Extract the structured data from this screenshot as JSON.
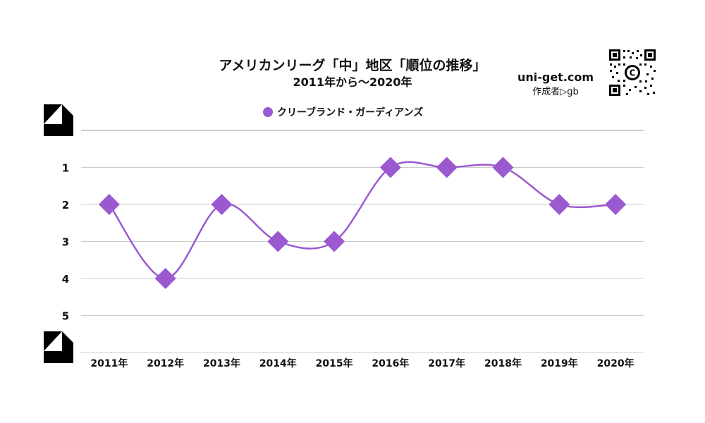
{
  "header": {
    "title": "アメリカンリーグ「中」地区「順位の推移」",
    "subtitle": "2011年から～2020年"
  },
  "brand": {
    "site": "uni-get.com",
    "author": "作成者▷gb",
    "qr_icon": "qr-code-icon"
  },
  "colors": {
    "series": "#9b59d0",
    "grid": "#cccccc",
    "text": "#111111"
  },
  "chart_data": {
    "type": "line",
    "title": "アメリカンリーグ「中」地区「順位の推移」",
    "subtitle": "2011年から～2020年",
    "categories": [
      "2011年",
      "2012年",
      "2013年",
      "2014年",
      "2015年",
      "2016年",
      "2017年",
      "2018年",
      "2019年",
      "2020年"
    ],
    "series": [
      {
        "name": "クリーブランド・ガーディアンズ",
        "values": [
          2,
          4,
          2,
          3,
          3,
          1,
          1,
          1,
          2,
          2
        ],
        "color": "#9b59d0",
        "marker": "diamond"
      }
    ],
    "y_ticks": [
      "1",
      "2",
      "3",
      "4",
      "5"
    ],
    "ylim": [
      0,
      6
    ],
    "y_reversed": true,
    "grid": true,
    "legend": "top-center",
    "smooth": true
  }
}
